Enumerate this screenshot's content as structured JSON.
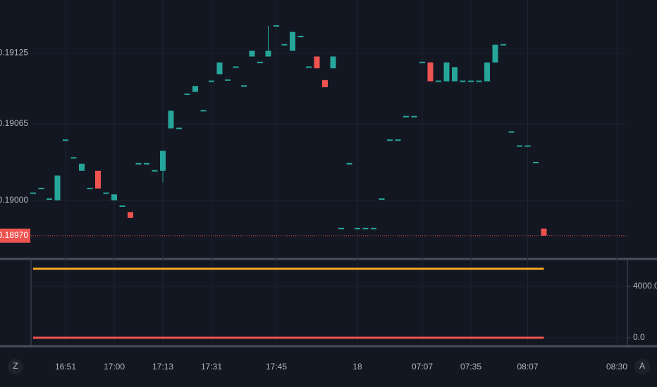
{
  "chart_data": [
    {
      "type": "candlestick",
      "categories": [
        null,
        null,
        null,
        null,
        "16:51",
        null,
        null,
        null,
        null,
        null,
        "17:00",
        null,
        null,
        null,
        null,
        null,
        "17:13",
        null,
        null,
        null,
        null,
        null,
        "17:31",
        null,
        null,
        null,
        null,
        null,
        null,
        null,
        "17:45",
        null,
        null,
        null,
        null,
        null,
        null,
        null,
        null,
        null,
        "18",
        null,
        null,
        null,
        null,
        null,
        null,
        null,
        "07:07",
        null,
        null,
        null,
        null,
        null,
        "07:35",
        null,
        null,
        null,
        null,
        null,
        null,
        "08:07",
        null,
        null,
        null,
        null,
        null,
        null,
        null,
        null,
        null,
        null,
        "08:30"
      ],
      "open": [
        0.19006,
        0.1901,
        0.19001,
        0.19,
        0.19051,
        0.19036,
        0.19025,
        0.1901,
        0.19025,
        0.19006,
        0.19,
        0.18995,
        0.1899,
        0.19031,
        0.19031,
        0.19025,
        0.19025,
        0.19061,
        0.19061,
        0.1909,
        0.19092,
        0.19076,
        0.19101,
        0.19107,
        0.19102,
        0.19113,
        0.19097,
        0.19122,
        0.19117,
        0.19122,
        0.19148,
        0.19132,
        0.19127,
        0.19139,
        0.19113,
        0.19122,
        0.19102,
        0.19112,
        0.18976,
        0.19031,
        0.18976,
        0.18976,
        0.18976,
        0.19001,
        0.19051,
        0.19051,
        0.19071,
        0.19071,
        0.19117,
        0.19117,
        0.19101,
        0.19101,
        0.19101,
        0.19101,
        0.19101,
        0.19101,
        0.19101,
        0.19117,
        0.19132,
        0.19058,
        0.19046,
        0.19046,
        0.19032,
        0.18976,
        null,
        null,
        null,
        null,
        null,
        null,
        null,
        null,
        null
      ],
      "high": [
        0.19006,
        0.1901,
        0.19001,
        0.19021,
        0.19051,
        0.19036,
        0.19031,
        0.1901,
        0.19025,
        0.19006,
        0.19005,
        0.18995,
        0.1899,
        0.19031,
        0.19031,
        0.19025,
        0.19042,
        0.19076,
        0.19061,
        0.1909,
        0.19097,
        0.19076,
        0.19101,
        0.19117,
        0.19102,
        0.19113,
        0.19097,
        0.19127,
        0.19117,
        0.19148,
        0.19148,
        0.19132,
        0.19143,
        0.19139,
        0.19113,
        0.19122,
        0.19102,
        0.19122,
        0.18976,
        0.19031,
        0.18976,
        0.18976,
        0.18976,
        0.19001,
        0.19051,
        0.19051,
        0.19071,
        0.19071,
        0.19117,
        0.19117,
        0.19101,
        0.19117,
        0.19113,
        0.19101,
        0.19101,
        0.19101,
        0.19117,
        0.19132,
        0.19132,
        0.19058,
        0.19046,
        0.19046,
        0.19032,
        0.18976,
        null,
        null,
        null,
        null,
        null,
        null,
        null,
        null,
        null
      ],
      "low": [
        0.19006,
        0.1901,
        0.19001,
        0.19,
        0.19051,
        0.19036,
        0.19025,
        0.1901,
        0.1901,
        0.19006,
        0.19,
        0.18995,
        0.18985,
        0.19031,
        0.19031,
        0.19025,
        0.19015,
        0.19061,
        0.19061,
        0.1909,
        0.19092,
        0.19076,
        0.19101,
        0.19107,
        0.19102,
        0.19113,
        0.19097,
        0.19122,
        0.19117,
        0.19122,
        0.19148,
        0.19132,
        0.19127,
        0.19139,
        0.19113,
        0.19112,
        0.19096,
        0.19112,
        0.18976,
        0.19031,
        0.18976,
        0.18976,
        0.18976,
        0.19001,
        0.19051,
        0.19051,
        0.19071,
        0.19071,
        0.19117,
        0.19101,
        0.19101,
        0.19101,
        0.19101,
        0.19101,
        0.19101,
        0.19101,
        0.19101,
        0.19117,
        0.19132,
        0.19058,
        0.19046,
        0.19046,
        0.19032,
        0.1897,
        null,
        null,
        null,
        null,
        null,
        null,
        null,
        null,
        null
      ],
      "close": [
        0.19006,
        0.1901,
        0.19001,
        0.19021,
        0.19051,
        0.19036,
        0.19031,
        0.1901,
        0.1901,
        0.19006,
        0.19005,
        0.18995,
        0.18985,
        0.19031,
        0.19031,
        0.19025,
        0.19042,
        0.19076,
        0.19061,
        0.1909,
        0.19097,
        0.19076,
        0.19101,
        0.19117,
        0.19102,
        0.19113,
        0.19097,
        0.19127,
        0.19117,
        0.19127,
        0.19148,
        0.19132,
        0.19143,
        0.19139,
        0.19113,
        0.19112,
        0.19096,
        0.19122,
        0.18976,
        0.19031,
        0.18976,
        0.18976,
        0.18976,
        0.19001,
        0.19051,
        0.19051,
        0.19071,
        0.19071,
        0.19117,
        0.19101,
        0.19101,
        0.19117,
        0.19113,
        0.19101,
        0.19101,
        0.19101,
        0.19117,
        0.19132,
        0.19132,
        0.19058,
        0.19046,
        0.19046,
        0.19032,
        0.1897,
        null,
        null,
        null,
        null,
        null,
        null,
        null,
        null,
        null
      ],
      "up_color": "#26a69a",
      "down_color": "#ef5350",
      "ylim": [
        0.18952,
        0.1917
      ],
      "yticks": [
        {
          "value": 0.19,
          "label": "0.19000"
        },
        0.19065,
        0.19125
      ],
      "last_price": {
        "value": 0.1897,
        "label": "0.18970"
      },
      "last_price_color": "#ef5350",
      "grid": true
    },
    {
      "type": "line",
      "ylim": [
        -548,
        6027
      ],
      "yticks": [
        {
          "value": 0,
          "label": "0.0"
        },
        {
          "value": 4000,
          "label": "4000.0"
        }
      ],
      "grid": true,
      "series": [
        {
          "color": "#f5a623",
          "values": [
            5370,
            5370,
            5370,
            5370,
            5370,
            5370,
            5370,
            5370,
            5370,
            5370,
            5370,
            5370,
            5370,
            5370,
            5370,
            5370,
            5370,
            5370,
            5370,
            5370,
            5370,
            5370,
            5370,
            5370,
            5370,
            5370,
            5370,
            5370,
            5370,
            5370,
            5370,
            5370,
            5370,
            5370,
            5370,
            5370,
            5370,
            5370,
            5370,
            5370,
            5370,
            5370,
            5370,
            5370,
            5370,
            5370,
            5370,
            5370,
            5370,
            5370,
            5370,
            5370,
            5370,
            5370,
            5370,
            5370,
            5370,
            5370,
            5370,
            5370,
            5370,
            5370,
            5370,
            5370,
            null,
            null,
            null,
            null,
            null,
            null,
            null,
            null,
            null
          ]
        },
        {
          "color": "#ef5350",
          "values": [
            0,
            0,
            0,
            0,
            0,
            0,
            0,
            0,
            0,
            0,
            0,
            0,
            0,
            0,
            0,
            0,
            0,
            0,
            0,
            0,
            0,
            0,
            0,
            0,
            0,
            0,
            0,
            0,
            0,
            0,
            0,
            0,
            0,
            0,
            0,
            0,
            0,
            0,
            0,
            0,
            0,
            0,
            0,
            0,
            0,
            0,
            0,
            0,
            0,
            0,
            0,
            0,
            0,
            0,
            0,
            0,
            0,
            0,
            0,
            0,
            0,
            0,
            0,
            0,
            null,
            null,
            null,
            null,
            null,
            null,
            null,
            null,
            null
          ]
        }
      ]
    }
  ],
  "ui": {
    "left_button": "Z",
    "right_button": "A"
  }
}
